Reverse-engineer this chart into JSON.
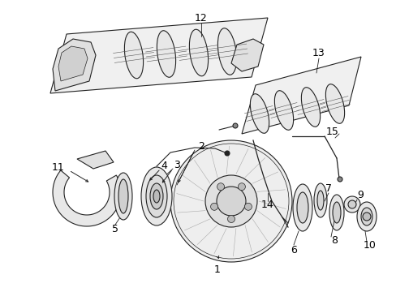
{
  "background_color": "#ffffff",
  "line_color": "#222222",
  "text_color": "#000000",
  "figure_width": 4.89,
  "figure_height": 3.6,
  "dpi": 100,
  "font_size": 9
}
